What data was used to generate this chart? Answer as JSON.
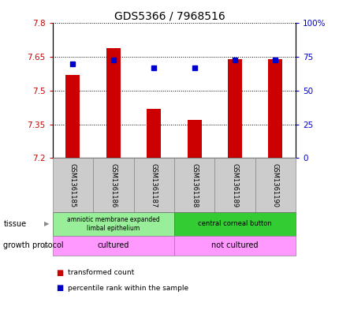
{
  "title": "GDS5366 / 7968516",
  "samples": [
    "GSM1361185",
    "GSM1361186",
    "GSM1361187",
    "GSM1361188",
    "GSM1361189",
    "GSM1361190"
  ],
  "transformed_counts": [
    7.57,
    7.69,
    7.42,
    7.37,
    7.64,
    7.64
  ],
  "percentile_ranks": [
    70,
    73,
    67,
    67,
    73,
    73
  ],
  "ymin": 7.2,
  "ymax": 7.8,
  "yticks_left": [
    7.2,
    7.35,
    7.5,
    7.65,
    7.8
  ],
  "yticks_right": [
    0,
    25,
    50,
    75,
    100
  ],
  "bar_color": "#cc0000",
  "dot_color": "#0000cc",
  "tissue_groups": [
    {
      "text": "amniotic membrane expanded\nlimbal epithelium",
      "cols": [
        0,
        1,
        2
      ],
      "facecolor": "#99ee99"
    },
    {
      "text": "central corneal button",
      "cols": [
        3,
        4,
        5
      ],
      "facecolor": "#33cc33"
    }
  ],
  "growth_groups": [
    {
      "text": "cultured",
      "cols": [
        0,
        1,
        2
      ],
      "facecolor": "#ff99ff"
    },
    {
      "text": "not cultured",
      "cols": [
        3,
        4,
        5
      ],
      "facecolor": "#ff99ff"
    }
  ],
  "sample_box_color": "#cccccc",
  "legend_items": [
    {
      "color": "#cc0000",
      "label": "transformed count"
    },
    {
      "color": "#0000cc",
      "label": "percentile rank within the sample"
    }
  ]
}
